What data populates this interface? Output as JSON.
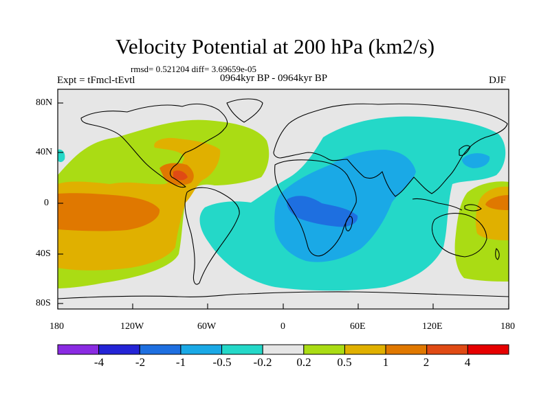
{
  "title": "Velocity Potential at 200 hPa (km2/s)",
  "stats": "rmsd= 0.521204  diff= 3.69659e-05",
  "experiment": "Expt = tFmcl-tEvtl",
  "period": "0964kyr BP - 0964kyr BP",
  "season": "DJF",
  "axes": {
    "lat_labels": [
      "80N",
      "40N",
      "0",
      "40S",
      "80S"
    ],
    "lon_labels": [
      "180",
      "120W",
      "60W",
      "0",
      "60E",
      "120E",
      "180"
    ]
  },
  "colorbar": {
    "colors": [
      "#8a2be2",
      "#2424d6",
      "#1e6fe0",
      "#1aa9e6",
      "#24d8c8",
      "#e6e6e6",
      "#aadc14",
      "#e0b000",
      "#e07800",
      "#e04a14",
      "#e60000"
    ],
    "labels": [
      "-4",
      "-2",
      "-1",
      "-0.5",
      "-0.2",
      "0.2",
      "0.5",
      "1",
      "2",
      "4"
    ]
  }
}
